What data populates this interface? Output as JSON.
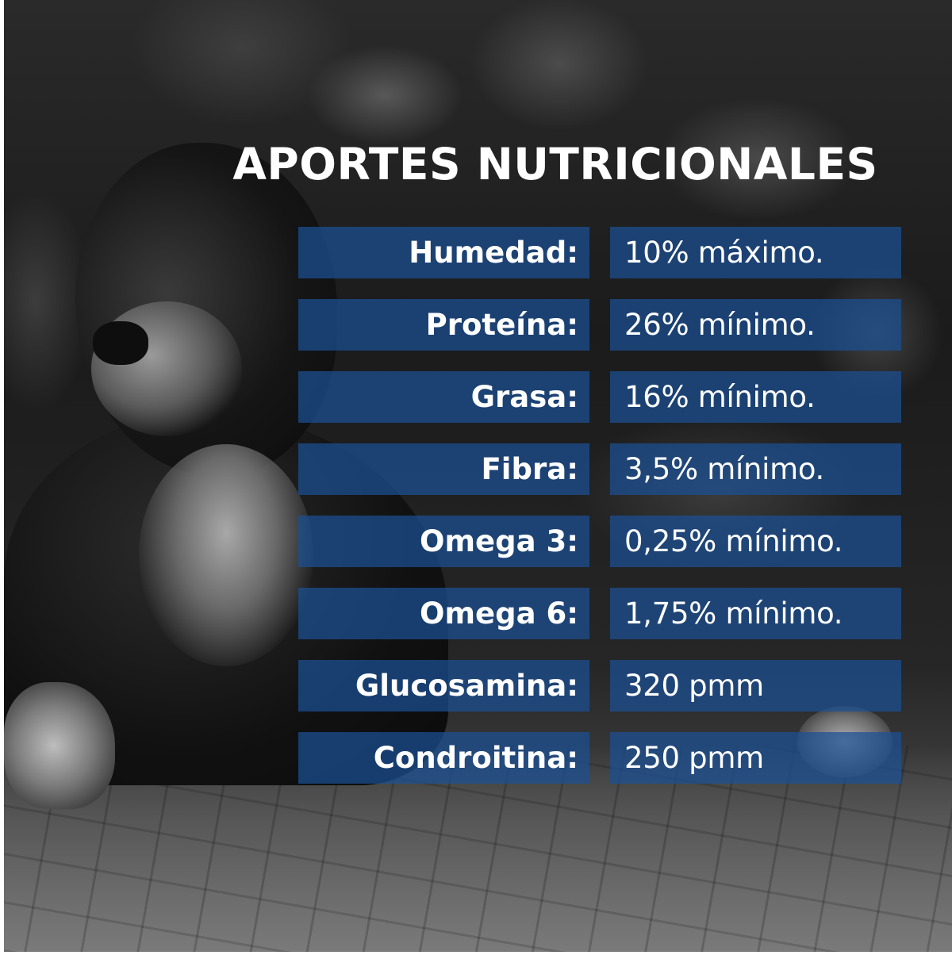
{
  "title": "APORTES NUTRICIONALES",
  "rows": [
    {
      "label": "Humedad:",
      "value": "10% máximo."
    },
    {
      "label": "Proteína:",
      "value": "26% mínimo."
    },
    {
      "label": "Grasa:",
      "value": "16% mínimo."
    },
    {
      "label": "Fibra:",
      "value": "3,5% mínimo."
    },
    {
      "label": "Omega 3:",
      "value": "0,25% mínimo."
    },
    {
      "label": "Omega 6:",
      "value": "1,75% mínimo."
    },
    {
      "label": "Glucosamina:",
      "value": "320 pmm"
    },
    {
      "label": "Condroitina:",
      "value": "250 pmm"
    }
  ],
  "colors": {
    "cell_background": "#1c5096",
    "text": "#ffffff"
  }
}
